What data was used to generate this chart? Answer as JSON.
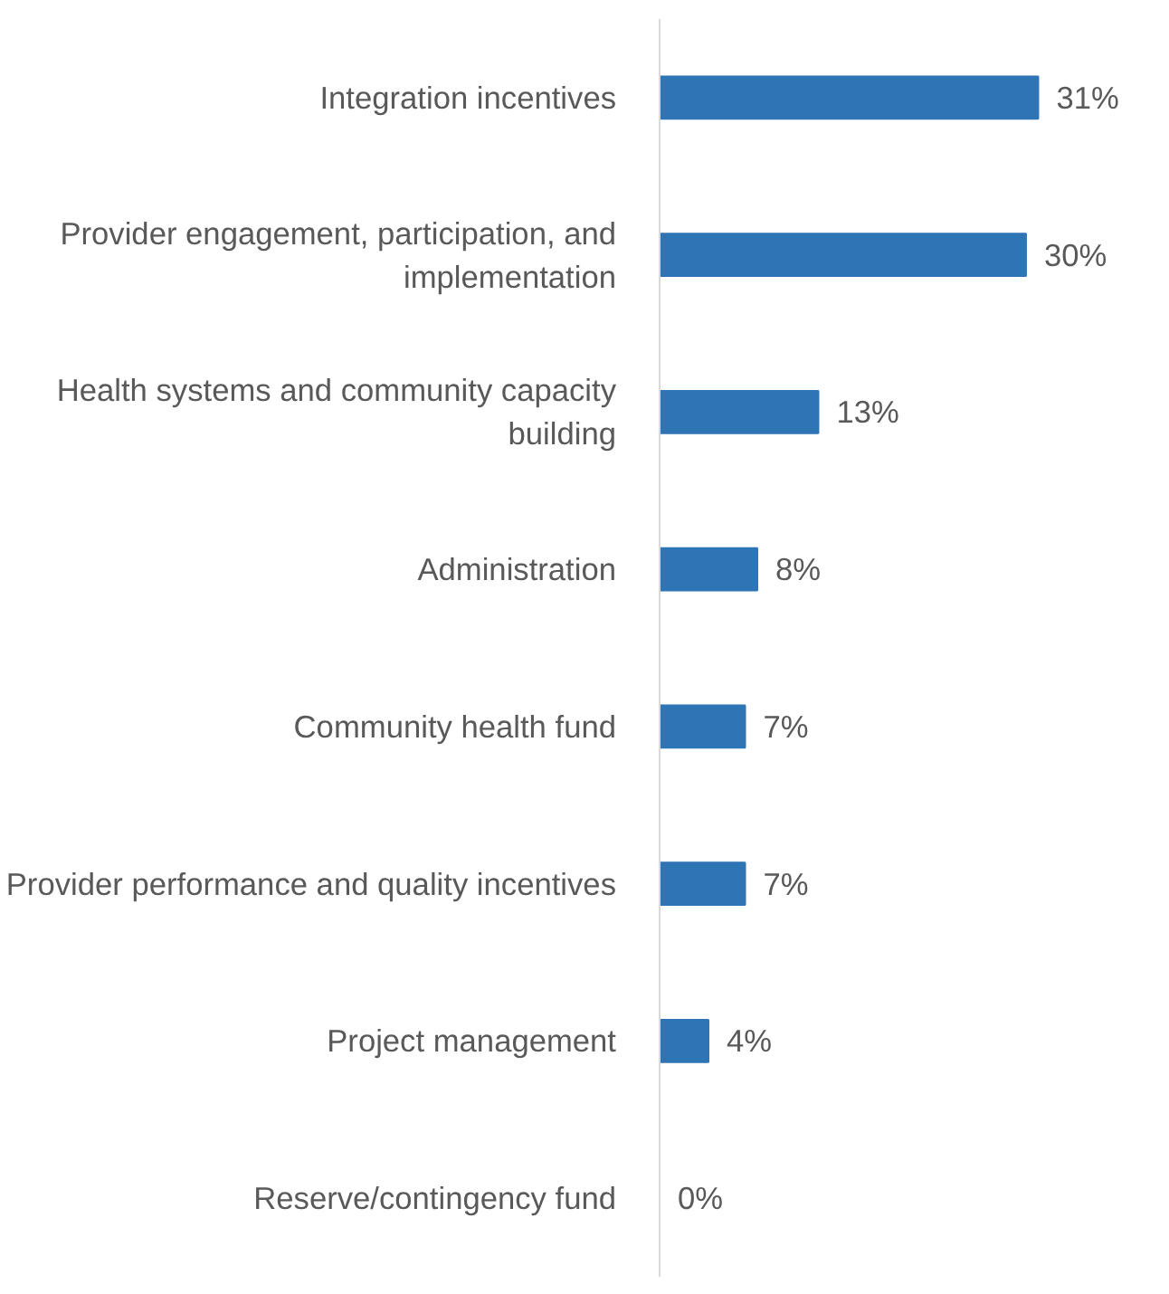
{
  "chart_data": {
    "type": "bar",
    "orientation": "horizontal",
    "categories": [
      "Integration incentives",
      "Provider engagement, participation, and implementation",
      "Health systems and community capacity building",
      "Administration",
      "Community health fund",
      "Provider performance and quality incentives",
      "Project management",
      "Reserve/contingency fund"
    ],
    "values": [
      31,
      30,
      13,
      8,
      7,
      7,
      4,
      0
    ],
    "value_labels": [
      "31%",
      "30%",
      "13%",
      "8%",
      "7%",
      "7%",
      "4%",
      "0%"
    ],
    "color": "#2e75b6"
  }
}
